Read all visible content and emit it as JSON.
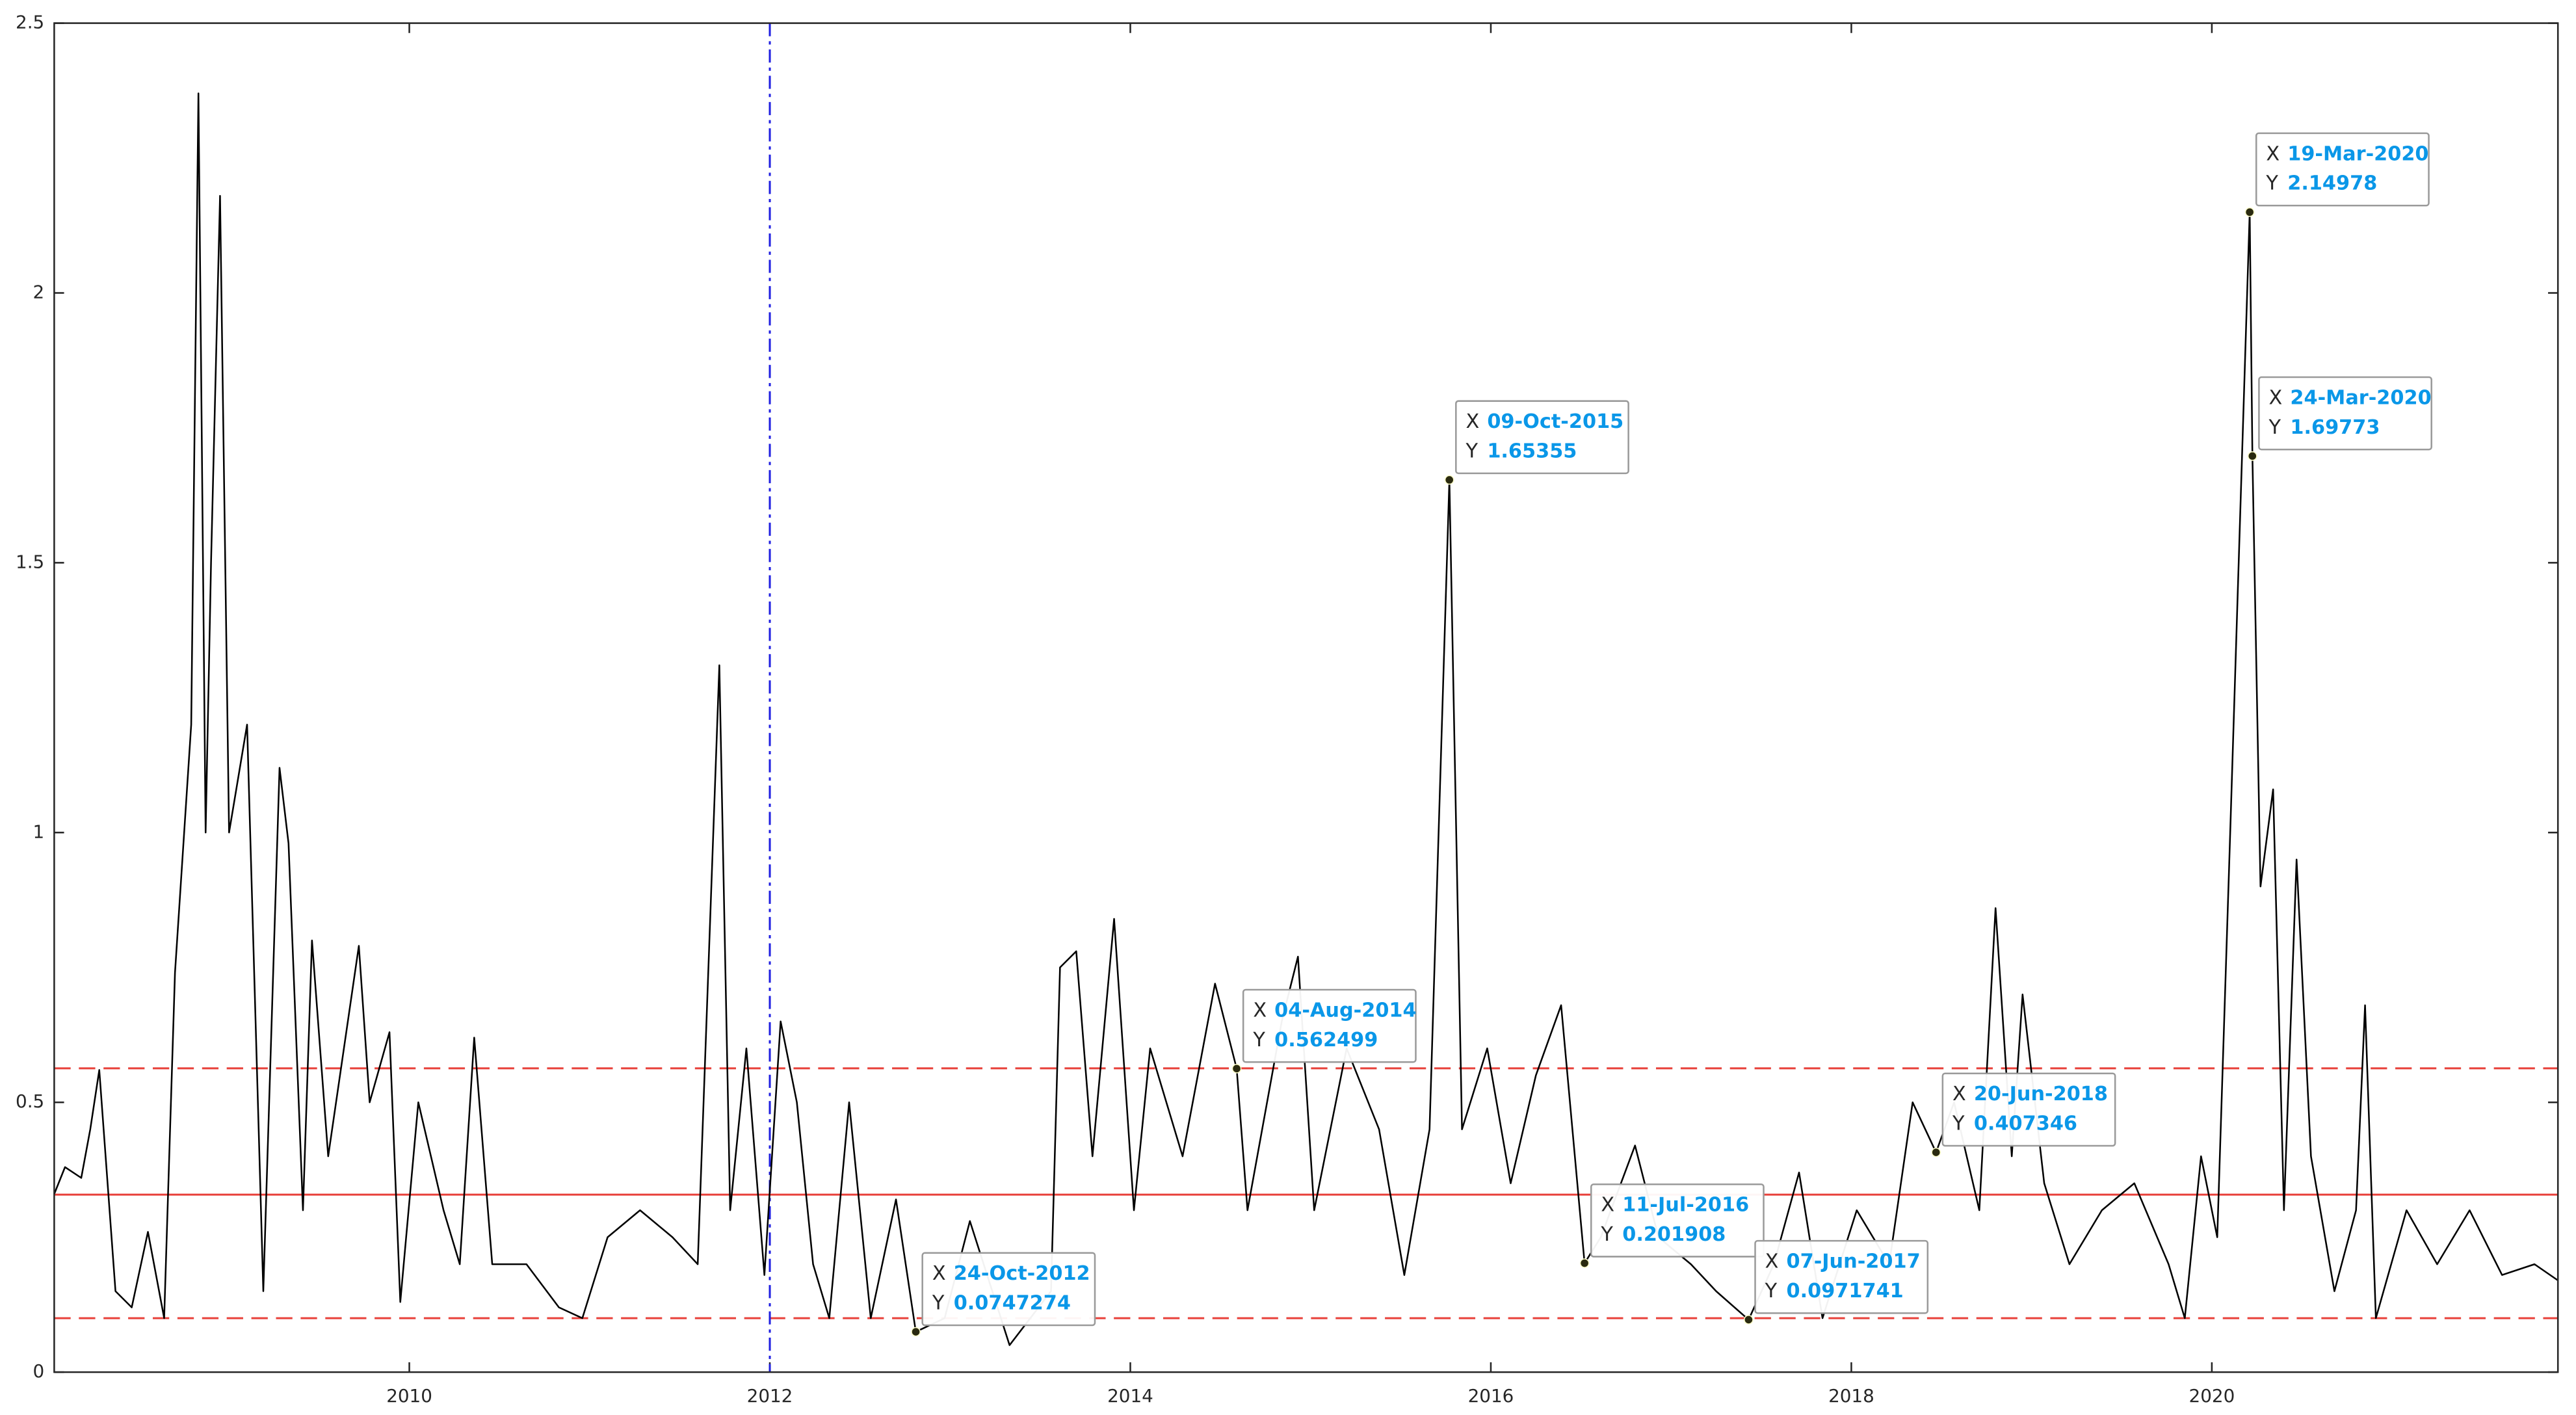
{
  "chart_data": {
    "type": "line",
    "x": [
      2008.03,
      2008.09,
      2008.18,
      2008.23,
      2008.28,
      2008.37,
      2008.46,
      2008.55,
      2008.64,
      2008.7,
      2008.79,
      2008.83,
      2008.87,
      2008.9,
      2008.95,
      2009.0,
      2009.1,
      2009.19,
      2009.28,
      2009.33,
      2009.41,
      2009.46,
      2009.55,
      2009.72,
      2009.78,
      2009.89,
      2009.95,
      2010.05,
      2010.19,
      2010.28,
      2010.36,
      2010.46,
      2010.65,
      2010.83,
      2010.96,
      2011.1,
      2011.28,
      2011.46,
      2011.6,
      2011.72,
      2011.78,
      2011.87,
      2011.97,
      2012.06,
      2012.15,
      2012.24,
      2012.33,
      2012.44,
      2012.56,
      2012.7,
      2012.81,
      2012.97,
      2013.11,
      2013.33,
      2013.56,
      2013.61,
      2013.7,
      2013.79,
      2013.91,
      2014.02,
      2014.11,
      2014.29,
      2014.47,
      2014.59,
      2014.65,
      2014.84,
      2014.93,
      2015.02,
      2015.2,
      2015.38,
      2015.52,
      2015.66,
      2015.77,
      2015.84,
      2015.98,
      2016.11,
      2016.25,
      2016.39,
      2016.52,
      2016.61,
      2016.8,
      2016.93,
      2017.11,
      2017.25,
      2017.43,
      2017.57,
      2017.71,
      2017.84,
      2018.03,
      2018.21,
      2018.34,
      2018.47,
      2018.57,
      2018.71,
      2018.8,
      2018.89,
      2018.95,
      2019.07,
      2019.21,
      2019.39,
      2019.57,
      2019.76,
      2019.85,
      2019.94,
      2020.03,
      2020.1,
      2020.21,
      2020.225,
      2020.27,
      2020.34,
      2020.4,
      2020.47,
      2020.55,
      2020.68,
      2020.8,
      2020.85,
      2020.91,
      2021.08,
      2021.25,
      2021.43,
      2021.61,
      2021.79,
      2021.92
    ],
    "series": [
      {
        "color": "#000000",
        "values": [
          0.33,
          0.38,
          0.36,
          0.45,
          0.56,
          0.15,
          0.12,
          0.26,
          0.1,
          0.74,
          1.2,
          2.37,
          1.0,
          1.5,
          2.18,
          1.0,
          1.2,
          0.15,
          1.12,
          0.98,
          0.3,
          0.8,
          0.4,
          0.79,
          0.5,
          0.63,
          0.13,
          0.5,
          0.3,
          0.2,
          0.62,
          0.2,
          0.2,
          0.12,
          0.1,
          0.25,
          0.3,
          0.25,
          0.2,
          1.31,
          0.3,
          0.6,
          0.18,
          0.65,
          0.5,
          0.2,
          0.1,
          0.5,
          0.1,
          0.32,
          0.0747274,
          0.1,
          0.28,
          0.05,
          0.15,
          0.75,
          0.78,
          0.4,
          0.84,
          0.3,
          0.6,
          0.4,
          0.72,
          0.562499,
          0.3,
          0.65,
          0.77,
          0.3,
          0.6,
          0.45,
          0.18,
          0.45,
          1.65355,
          0.45,
          0.6,
          0.35,
          0.55,
          0.68,
          0.201908,
          0.25,
          0.42,
          0.25,
          0.2,
          0.15,
          0.0971741,
          0.2,
          0.37,
          0.1,
          0.3,
          0.2,
          0.5,
          0.407346,
          0.5,
          0.3,
          0.86,
          0.4,
          0.7,
          0.35,
          0.2,
          0.3,
          0.35,
          0.2,
          0.1,
          0.4,
          0.25,
          0.98,
          2.14978,
          1.69773,
          0.9,
          1.08,
          0.3,
          0.95,
          0.4,
          0.15,
          0.3,
          0.68,
          0.1,
          0.3,
          0.2,
          0.3,
          0.18,
          0.2,
          0.17
        ]
      }
    ],
    "xlim": [
      2008.03,
      2021.92
    ],
    "xticks": [
      2010,
      2012,
      2014,
      2016,
      2018,
      2020
    ],
    "ylim": [
      0,
      2.5
    ],
    "yticks": [
      0,
      0.5,
      1,
      1.5,
      2,
      2.5
    ],
    "grid": false,
    "hlines": [
      {
        "y": 0.563,
        "color": "#e8403a",
        "style": "dashed"
      },
      {
        "y": 0.329,
        "color": "#e8403a",
        "style": "solid"
      },
      {
        "y": 0.1,
        "color": "#e8403a",
        "style": "dashed"
      }
    ],
    "vlines": [
      {
        "x": 2012.0,
        "color": "#2020e0",
        "style": "dashdot"
      }
    ],
    "datatip_x_prefix": "X",
    "datatip_y_prefix": "Y",
    "datatips": [
      {
        "x": 2012.81,
        "x_label": "24-Oct-2012",
        "y": 0.0747274
      },
      {
        "x": 2014.59,
        "x_label": "04-Aug-2014",
        "y": 0.562499
      },
      {
        "x": 2015.77,
        "x_label": "09-Oct-2015",
        "y": 1.65355
      },
      {
        "x": 2016.52,
        "x_label": "11-Jul-2016",
        "y": 0.201908
      },
      {
        "x": 2017.43,
        "x_label": "07-Jun-2017",
        "y": 0.0971741
      },
      {
        "x": 2018.47,
        "x_label": "20-Jun-2018",
        "y": 0.407346
      },
      {
        "x": 2020.21,
        "x_label": "19-Mar-2020",
        "y": 2.14978
      },
      {
        "x": 2020.225,
        "x_label": "24-Mar-2020",
        "y": 1.69773
      }
    ]
  }
}
